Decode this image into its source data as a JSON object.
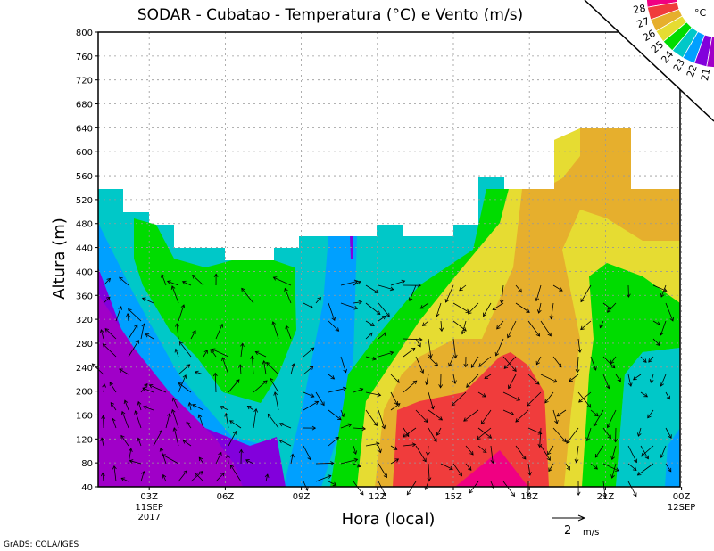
{
  "chart_data": {
    "type": "heatmap",
    "title": "SODAR - Cubatao - Temperatura (°C) e Vento (m/s)",
    "xlabel": "Hora (local)",
    "ylabel": "Altura (m)",
    "ylim": [
      40,
      800
    ],
    "yticks": [
      "40",
      "80",
      "120",
      "160",
      "200",
      "240",
      "280",
      "320",
      "360",
      "400",
      "440",
      "480",
      "520",
      "560",
      "600",
      "640",
      "680",
      "720",
      "760",
      "800"
    ],
    "xticks": [
      {
        "label": "03Z",
        "sub": [
          "11SEP",
          "2017"
        ],
        "hour": 3
      },
      {
        "label": "06Z",
        "sub": [],
        "hour": 6
      },
      {
        "label": "09Z",
        "sub": [],
        "hour": 9
      },
      {
        "label": "12Z",
        "sub": [],
        "hour": 12
      },
      {
        "label": "15Z",
        "sub": [],
        "hour": 15
      },
      {
        "label": "18Z",
        "sub": [],
        "hour": 18
      },
      {
        "label": "21Z",
        "sub": [],
        "hour": 21
      },
      {
        "label": "00Z",
        "sub": [
          "12SEP"
        ],
        "hour": 24
      }
    ],
    "grid": true,
    "colorbar": {
      "unit": "°C",
      "levels": [
        "21",
        "22",
        "23",
        "24",
        "25",
        "26",
        "27",
        "28"
      ],
      "colors": [
        "#a000c8",
        "#8200dc",
        "#00a0ff",
        "#00c8c8",
        "#00dc00",
        "#e6dc32",
        "#e6af2d",
        "#f03c3c",
        "#f00082"
      ]
    },
    "vector_key": {
      "value": "2",
      "unit": "m/s"
    }
  },
  "credit": "GrADS: COLA/IGES"
}
